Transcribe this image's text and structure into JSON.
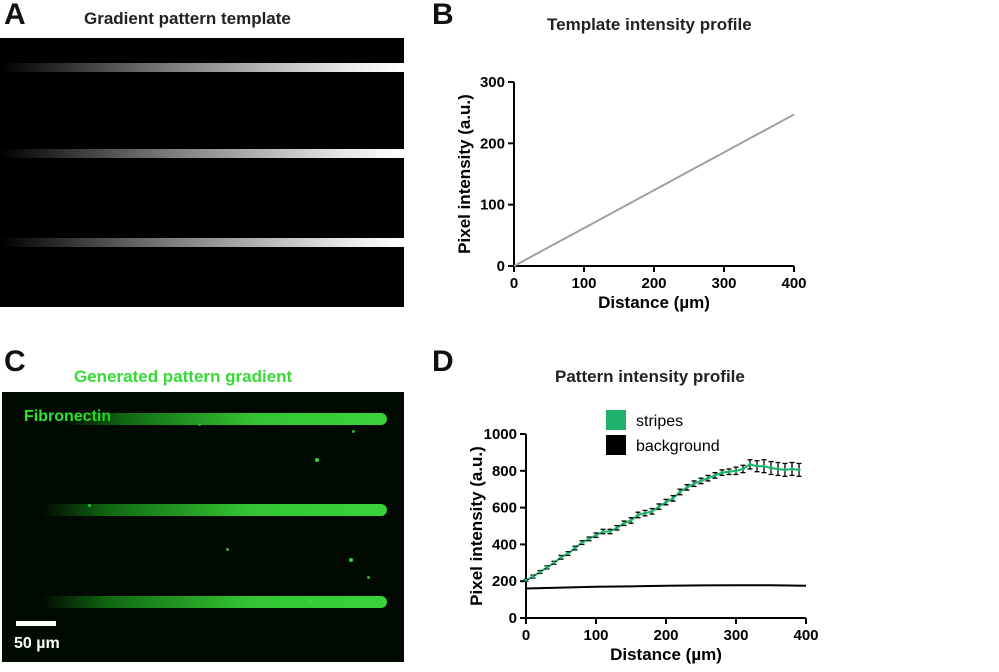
{
  "panels": {
    "a": {
      "letter": "A",
      "title": "Gradient pattern template",
      "stripes": 3
    },
    "b": {
      "letter": "B",
      "title": "Template intensity profile"
    },
    "c": {
      "letter": "C",
      "title": "Generated pattern gradient",
      "label": "Fibronectin",
      "scale_bar": "50 µm",
      "stripes": 3
    },
    "d": {
      "letter": "D",
      "title": "Pattern intensity profile"
    }
  },
  "colors": {
    "stripes": "#1db36b",
    "background": "#000000",
    "template_line": "#a0a0a0",
    "fluor": "#22dd22"
  },
  "chart_data": [
    {
      "id": "B",
      "type": "line",
      "title": "Template intensity profile",
      "xlabel": "Distance (µm)",
      "ylabel": "Pixel intensity (a.u.)",
      "xlim": [
        0,
        400
      ],
      "ylim": [
        0,
        300
      ],
      "xticks": [
        0,
        100,
        200,
        300,
        400
      ],
      "yticks": [
        0,
        100,
        200,
        300
      ],
      "series": [
        {
          "name": "template",
          "x": [
            0,
            400
          ],
          "y": [
            0,
            247
          ]
        }
      ]
    },
    {
      "id": "D",
      "type": "line",
      "title": "Pattern intensity profile",
      "xlabel": "Distance (µm)",
      "ylabel": "Pixel intensity (a.u.)",
      "xlim": [
        0,
        400
      ],
      "ylim": [
        0,
        1000
      ],
      "xticks": [
        0,
        100,
        200,
        300,
        400
      ],
      "yticks": [
        0,
        200,
        400,
        600,
        800,
        1000
      ],
      "legend": [
        "stripes",
        "background"
      ],
      "series": [
        {
          "name": "stripes",
          "x": [
            0,
            10,
            20,
            30,
            40,
            50,
            60,
            70,
            80,
            90,
            100,
            110,
            120,
            130,
            140,
            150,
            160,
            170,
            180,
            190,
            200,
            210,
            220,
            230,
            240,
            250,
            260,
            270,
            280,
            290,
            300,
            310,
            320,
            330,
            340,
            350,
            360,
            370,
            380,
            390
          ],
          "y": [
            205,
            225,
            250,
            275,
            300,
            330,
            350,
            380,
            410,
            430,
            450,
            470,
            470,
            490,
            515,
            530,
            560,
            570,
            580,
            605,
            630,
            650,
            685,
            710,
            730,
            745,
            760,
            775,
            790,
            795,
            800,
            810,
            835,
            825,
            825,
            815,
            810,
            805,
            810,
            805
          ],
          "err": [
            5,
            8,
            8,
            8,
            8,
            10,
            10,
            10,
            10,
            10,
            12,
            12,
            12,
            12,
            12,
            15,
            15,
            15,
            15,
            15,
            15,
            15,
            15,
            15,
            15,
            15,
            15,
            15,
            15,
            15,
            20,
            20,
            25,
            30,
            35,
            35,
            35,
            35,
            35,
            35
          ]
        },
        {
          "name": "background",
          "x": [
            0,
            50,
            100,
            150,
            200,
            250,
            300,
            350,
            400
          ],
          "y": [
            160,
            165,
            170,
            172,
            175,
            177,
            178,
            178,
            175
          ]
        }
      ]
    }
  ]
}
